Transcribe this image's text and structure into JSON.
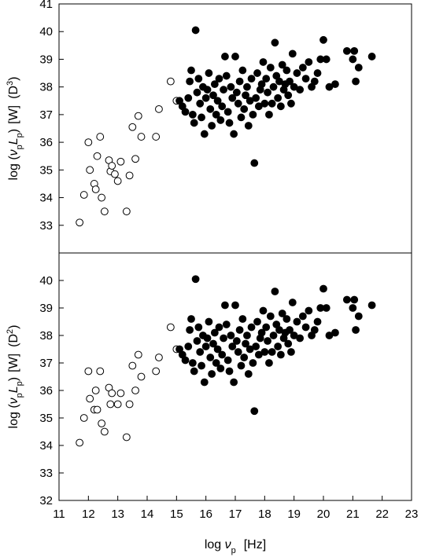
{
  "chart_data": [
    {
      "type": "scatter",
      "panel": "top",
      "ylabel": {
        "base": "log (",
        "nu": "ν",
        "nu_sub": "p",
        "L": "L",
        "L_sub": "p",
        "close": ")",
        "unit": "[W]",
        "corr": "(D",
        "corr_sup": "3",
        "corr_close": ")"
      },
      "xlim": [
        11,
        23
      ],
      "ylim": [
        32,
        41
      ],
      "yticks": [
        33,
        34,
        35,
        36,
        37,
        38,
        39,
        40,
        41
      ],
      "grid": false,
      "series": [
        {
          "marker": "open-circle",
          "points": [
            [
              11.7,
              33.1
            ],
            [
              11.85,
              34.1
            ],
            [
              12.0,
              36.0
            ],
            [
              12.05,
              35.0
            ],
            [
              12.2,
              34.5
            ],
            [
              12.25,
              34.3
            ],
            [
              12.3,
              35.5
            ],
            [
              12.4,
              36.2
            ],
            [
              12.45,
              34.0
            ],
            [
              12.55,
              33.5
            ],
            [
              12.7,
              35.35
            ],
            [
              12.75,
              34.95
            ],
            [
              12.8,
              35.15
            ],
            [
              12.9,
              34.85
            ],
            [
              13.0,
              34.6
            ],
            [
              13.1,
              35.3
            ],
            [
              13.3,
              33.5
            ],
            [
              13.4,
              34.8
            ],
            [
              13.5,
              36.55
            ],
            [
              13.6,
              35.4
            ],
            [
              13.7,
              36.95
            ],
            [
              13.8,
              36.2
            ],
            [
              14.3,
              36.2
            ],
            [
              14.4,
              37.2
            ],
            [
              14.8,
              38.2
            ],
            [
              15.0,
              37.5
            ]
          ]
        },
        {
          "marker": "filled-circle",
          "points": [
            [
              15.1,
              37.5
            ],
            [
              15.2,
              37.3
            ],
            [
              15.3,
              37.1
            ],
            [
              15.4,
              37.6
            ],
            [
              15.45,
              38.2
            ],
            [
              15.5,
              38.6
            ],
            [
              15.55,
              37.0
            ],
            [
              15.6,
              36.7
            ],
            [
              15.65,
              40.05
            ],
            [
              15.7,
              37.8
            ],
            [
              15.75,
              38.3
            ],
            [
              15.8,
              37.4
            ],
            [
              15.85,
              36.9
            ],
            [
              15.9,
              38.0
            ],
            [
              15.95,
              36.3
            ],
            [
              16.0,
              37.6
            ],
            [
              16.05,
              37.9
            ],
            [
              16.1,
              38.5
            ],
            [
              16.15,
              37.2
            ],
            [
              16.2,
              36.6
            ],
            [
              16.25,
              37.7
            ],
            [
              16.3,
              38.1
            ],
            [
              16.35,
              37.0
            ],
            [
              16.4,
              37.5
            ],
            [
              16.45,
              38.3
            ],
            [
              16.5,
              36.8
            ],
            [
              16.55,
              37.3
            ],
            [
              16.6,
              37.9
            ],
            [
              16.65,
              39.1
            ],
            [
              16.7,
              38.4
            ],
            [
              16.75,
              37.1
            ],
            [
              16.8,
              36.7
            ],
            [
              16.85,
              38.0
            ],
            [
              16.9,
              37.6
            ],
            [
              16.95,
              36.3
            ],
            [
              17.0,
              39.1
            ],
            [
              17.05,
              37.8
            ],
            [
              17.1,
              37.4
            ],
            [
              17.15,
              38.2
            ],
            [
              17.2,
              36.9
            ],
            [
              17.25,
              38.6
            ],
            [
              17.3,
              37.2
            ],
            [
              17.35,
              37.7
            ],
            [
              17.4,
              38.0
            ],
            [
              17.45,
              36.6
            ],
            [
              17.5,
              37.5
            ],
            [
              17.55,
              38.3
            ],
            [
              17.6,
              37.0
            ],
            [
              17.65,
              35.25
            ],
            [
              17.7,
              37.6
            ],
            [
              17.75,
              38.5
            ],
            [
              17.8,
              37.3
            ],
            [
              17.85,
              37.9
            ],
            [
              17.9,
              38.1
            ],
            [
              17.95,
              38.9
            ],
            [
              18.0,
              37.4
            ],
            [
              18.05,
              38.3
            ],
            [
              18.1,
              37.8
            ],
            [
              18.15,
              37.0
            ],
            [
              18.2,
              38.7
            ],
            [
              18.25,
              37.4
            ],
            [
              18.3,
              38.0
            ],
            [
              18.35,
              39.6
            ],
            [
              18.4,
              38.4
            ],
            [
              18.45,
              37.6
            ],
            [
              18.5,
              38.2
            ],
            [
              18.55,
              37.3
            ],
            [
              18.6,
              38.8
            ],
            [
              18.65,
              37.9
            ],
            [
              18.7,
              38.1
            ],
            [
              18.75,
              38.6
            ],
            [
              18.8,
              37.7
            ],
            [
              18.85,
              38.2
            ],
            [
              18.9,
              37.4
            ],
            [
              18.95,
              39.2
            ],
            [
              19.0,
              38.0
            ],
            [
              19.1,
              38.5
            ],
            [
              19.2,
              37.9
            ],
            [
              19.3,
              38.7
            ],
            [
              19.4,
              38.3
            ],
            [
              19.5,
              38.9
            ],
            [
              19.6,
              38.0
            ],
            [
              19.7,
              38.2
            ],
            [
              19.8,
              38.5
            ],
            [
              19.9,
              39.0
            ],
            [
              20.0,
              39.7
            ],
            [
              20.1,
              39.0
            ],
            [
              20.2,
              38.0
            ],
            [
              20.4,
              38.1
            ],
            [
              20.8,
              39.3
            ],
            [
              21.0,
              39.0
            ],
            [
              21.05,
              39.3
            ],
            [
              21.1,
              38.2
            ],
            [
              21.2,
              38.7
            ],
            [
              21.65,
              39.1
            ]
          ]
        }
      ]
    },
    {
      "type": "scatter",
      "panel": "bottom",
      "xlabel": {
        "base": "log ",
        "nu": "ν",
        "nu_sub": "p",
        "unit": "[Hz]"
      },
      "ylabel": {
        "base": "log (",
        "nu": "ν",
        "nu_sub": "p",
        "L": "L",
        "L_sub": "p",
        "close": ")",
        "unit": "[W]",
        "corr": "(D",
        "corr_sup": "2",
        "corr_close": ")"
      },
      "xlim": [
        11,
        23
      ],
      "ylim": [
        32,
        41
      ],
      "xticks": [
        11,
        12,
        13,
        14,
        15,
        16,
        17,
        18,
        19,
        20,
        21,
        22,
        23
      ],
      "yticks": [
        32,
        33,
        34,
        35,
        36,
        37,
        38,
        39,
        40
      ],
      "grid": false,
      "series": [
        {
          "marker": "open-circle",
          "points": [
            [
              11.7,
              34.1
            ],
            [
              11.85,
              35.0
            ],
            [
              12.0,
              36.7
            ],
            [
              12.05,
              35.7
            ],
            [
              12.2,
              35.3
            ],
            [
              12.25,
              36.0
            ],
            [
              12.3,
              35.3
            ],
            [
              12.4,
              36.7
            ],
            [
              12.45,
              34.8
            ],
            [
              12.55,
              34.5
            ],
            [
              12.7,
              36.1
            ],
            [
              12.75,
              35.5
            ],
            [
              12.8,
              35.9
            ],
            [
              13.0,
              35.5
            ],
            [
              13.1,
              35.9
            ],
            [
              13.3,
              34.3
            ],
            [
              13.4,
              35.5
            ],
            [
              13.5,
              36.9
            ],
            [
              13.6,
              36.0
            ],
            [
              13.7,
              37.3
            ],
            [
              13.8,
              36.5
            ],
            [
              14.3,
              36.7
            ],
            [
              14.4,
              37.2
            ],
            [
              14.8,
              38.3
            ],
            [
              15.0,
              37.5
            ]
          ]
        },
        {
          "marker": "filled-circle",
          "points": [
            [
              15.1,
              37.5
            ],
            [
              15.2,
              37.3
            ],
            [
              15.3,
              37.1
            ],
            [
              15.4,
              37.6
            ],
            [
              15.45,
              38.2
            ],
            [
              15.5,
              38.6
            ],
            [
              15.55,
              37.0
            ],
            [
              15.6,
              36.7
            ],
            [
              15.65,
              40.05
            ],
            [
              15.7,
              37.8
            ],
            [
              15.75,
              38.3
            ],
            [
              15.8,
              37.4
            ],
            [
              15.85,
              36.9
            ],
            [
              15.9,
              38.0
            ],
            [
              15.95,
              36.3
            ],
            [
              16.0,
              37.6
            ],
            [
              16.05,
              37.9
            ],
            [
              16.1,
              38.5
            ],
            [
              16.15,
              37.2
            ],
            [
              16.2,
              36.6
            ],
            [
              16.25,
              37.7
            ],
            [
              16.3,
              38.1
            ],
            [
              16.35,
              37.0
            ],
            [
              16.4,
              37.5
            ],
            [
              16.45,
              38.3
            ],
            [
              16.5,
              36.8
            ],
            [
              16.55,
              37.3
            ],
            [
              16.6,
              37.9
            ],
            [
              16.65,
              39.1
            ],
            [
              16.7,
              38.4
            ],
            [
              16.75,
              37.1
            ],
            [
              16.8,
              36.7
            ],
            [
              16.85,
              38.0
            ],
            [
              16.9,
              37.6
            ],
            [
              16.95,
              36.3
            ],
            [
              17.0,
              39.1
            ],
            [
              17.05,
              37.8
            ],
            [
              17.1,
              37.4
            ],
            [
              17.15,
              38.2
            ],
            [
              17.2,
              36.9
            ],
            [
              17.25,
              38.6
            ],
            [
              17.3,
              37.2
            ],
            [
              17.35,
              37.7
            ],
            [
              17.4,
              38.0
            ],
            [
              17.45,
              36.6
            ],
            [
              17.5,
              37.5
            ],
            [
              17.55,
              38.3
            ],
            [
              17.6,
              37.0
            ],
            [
              17.65,
              35.25
            ],
            [
              17.7,
              37.6
            ],
            [
              17.75,
              38.5
            ],
            [
              17.8,
              37.3
            ],
            [
              17.85,
              37.9
            ],
            [
              17.9,
              38.1
            ],
            [
              17.95,
              38.9
            ],
            [
              18.0,
              37.4
            ],
            [
              18.05,
              38.3
            ],
            [
              18.1,
              37.8
            ],
            [
              18.15,
              37.0
            ],
            [
              18.2,
              38.7
            ],
            [
              18.25,
              37.4
            ],
            [
              18.3,
              38.0
            ],
            [
              18.35,
              39.6
            ],
            [
              18.4,
              38.4
            ],
            [
              18.45,
              37.6
            ],
            [
              18.5,
              38.2
            ],
            [
              18.55,
              37.3
            ],
            [
              18.6,
              38.8
            ],
            [
              18.65,
              37.9
            ],
            [
              18.7,
              38.1
            ],
            [
              18.75,
              38.6
            ],
            [
              18.8,
              37.7
            ],
            [
              18.85,
              38.2
            ],
            [
              18.9,
              37.4
            ],
            [
              18.95,
              39.2
            ],
            [
              19.0,
              38.0
            ],
            [
              19.1,
              38.5
            ],
            [
              19.2,
              37.9
            ],
            [
              19.3,
              38.7
            ],
            [
              19.4,
              38.3
            ],
            [
              19.5,
              38.9
            ],
            [
              19.6,
              38.0
            ],
            [
              19.7,
              38.2
            ],
            [
              19.8,
              38.5
            ],
            [
              19.9,
              39.0
            ],
            [
              20.0,
              39.7
            ],
            [
              20.1,
              39.0
            ],
            [
              20.2,
              38.0
            ],
            [
              20.4,
              38.1
            ],
            [
              20.8,
              39.3
            ],
            [
              21.0,
              39.0
            ],
            [
              21.05,
              39.3
            ],
            [
              21.1,
              38.2
            ],
            [
              21.2,
              38.7
            ],
            [
              21.65,
              39.1
            ]
          ]
        }
      ]
    }
  ]
}
